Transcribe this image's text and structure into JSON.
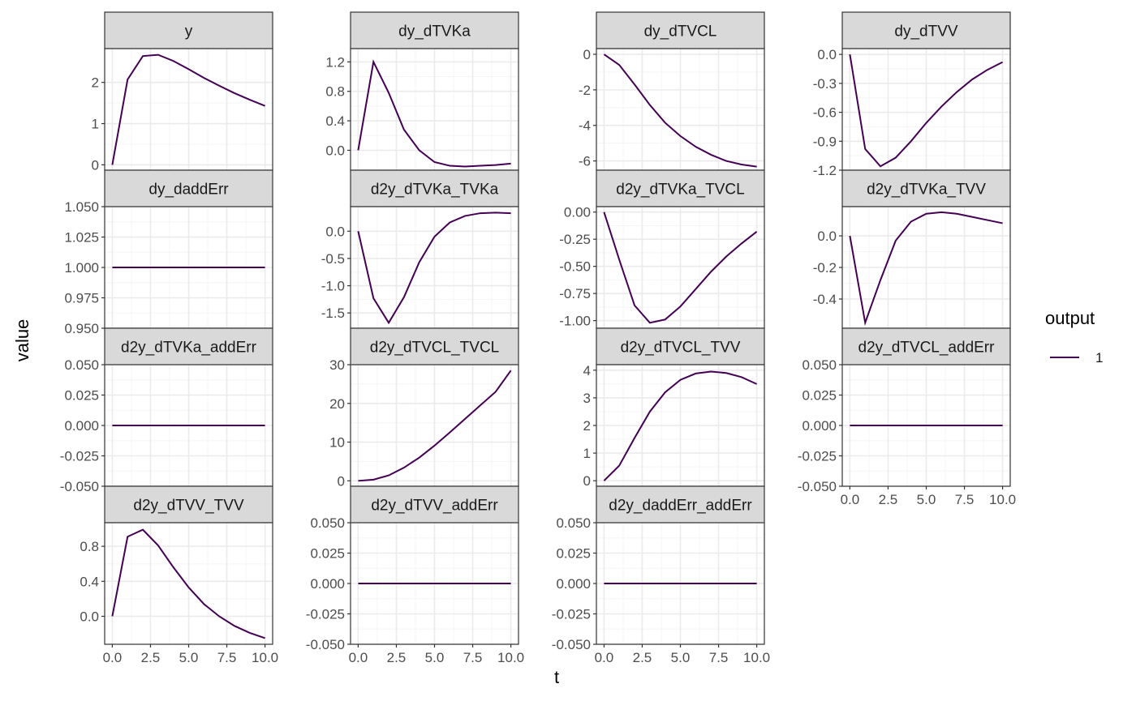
{
  "chart_data": {
    "type": "line",
    "xlabel": "t",
    "ylabel": "value",
    "legend": {
      "title": "output",
      "placement": "right",
      "items": [
        {
          "label": "1",
          "color": "#440154"
        }
      ]
    },
    "colors": {
      "line": "#440154",
      "strip_fill": "#d9d9d9",
      "panel_border": "#333333",
      "grid_major": "#ebebeb",
      "grid_minor": "#f5f5f5"
    },
    "x": [
      0,
      1,
      2,
      3,
      4,
      5,
      6,
      7,
      8,
      9,
      10
    ],
    "x_ticks": [
      0,
      2.5,
      5,
      7.5,
      10
    ],
    "x_tick_labels": [
      "0.0",
      "2.5",
      "5.0",
      "7.5",
      "10.0"
    ],
    "xlim": [
      -0.5,
      10.5
    ],
    "panels": [
      {
        "title": "y",
        "ylim": [
          -0.13,
          2.82
        ],
        "y_ticks": [
          0,
          1,
          2
        ],
        "y_tick_labels": [
          "0",
          "1",
          "2"
        ],
        "values": [
          0,
          2.07,
          2.64,
          2.67,
          2.52,
          2.32,
          2.11,
          1.92,
          1.74,
          1.58,
          1.43
        ]
      },
      {
        "title": "dy_dTVKa",
        "ylim": [
          -0.27,
          1.38
        ],
        "y_ticks": [
          0,
          0.4,
          0.8,
          1.2
        ],
        "y_tick_labels": [
          "0.0",
          "0.4",
          "0.8",
          "1.2"
        ],
        "values": [
          0,
          1.2,
          0.78,
          0.28,
          0.0,
          -0.16,
          -0.21,
          -0.22,
          -0.21,
          -0.2,
          -0.18
        ]
      },
      {
        "title": "dy_dTVCL",
        "ylim": [
          -6.52,
          0.32
        ],
        "y_ticks": [
          -6,
          -4,
          -2,
          0
        ],
        "y_tick_labels": [
          "-6",
          "-4",
          "-2",
          "0"
        ],
        "values": [
          0,
          -0.6,
          -1.7,
          -2.85,
          -3.85,
          -4.6,
          -5.2,
          -5.65,
          -6.0,
          -6.2,
          -6.32
        ]
      },
      {
        "title": "dy_dTVV",
        "ylim": [
          -1.2,
          0.06
        ],
        "y_ticks": [
          -1.2,
          -0.9,
          -0.6,
          -0.3,
          0
        ],
        "y_tick_labels": [
          "-1.2",
          "-0.9",
          "-0.6",
          "-0.3",
          "0.0"
        ],
        "values": [
          0,
          -0.98,
          -1.16,
          -1.07,
          -0.9,
          -0.71,
          -0.54,
          -0.39,
          -0.26,
          -0.16,
          -0.08
        ]
      },
      {
        "title": "dy_daddErr",
        "ylim": [
          0.95,
          1.05
        ],
        "y_ticks": [
          0.95,
          0.975,
          1.0,
          1.025,
          1.05
        ],
        "y_tick_labels": [
          "0.950",
          "0.975",
          "1.000",
          "1.025",
          "1.050"
        ],
        "values": [
          1,
          1,
          1,
          1,
          1,
          1,
          1,
          1,
          1,
          1,
          1
        ]
      },
      {
        "title": "d2y_dTVKa_TVKa",
        "ylim": [
          -1.78,
          0.45
        ],
        "y_ticks": [
          -1.5,
          -1.0,
          -0.5,
          0
        ],
        "y_tick_labels": [
          "-1.5",
          "-1.0",
          "-0.5",
          "0.0"
        ],
        "values": [
          0,
          -1.23,
          -1.68,
          -1.21,
          -0.57,
          -0.1,
          0.16,
          0.28,
          0.33,
          0.34,
          0.33
        ]
      },
      {
        "title": "d2y_dTVKa_TVCL",
        "ylim": [
          -1.07,
          0.05
        ],
        "y_ticks": [
          -1.0,
          -0.75,
          -0.5,
          -0.25,
          0
        ],
        "y_tick_labels": [
          "-1.00",
          "-0.75",
          "-0.50",
          "-0.25",
          "0.00"
        ],
        "values": [
          0,
          -0.44,
          -0.86,
          -1.02,
          -0.99,
          -0.87,
          -0.71,
          -0.55,
          -0.41,
          -0.29,
          -0.18
        ]
      },
      {
        "title": "d2y_dTVKa_TVV",
        "ylim": [
          -0.585,
          0.185
        ],
        "y_ticks": [
          -0.4,
          -0.2,
          0
        ],
        "y_tick_labels": [
          "-0.4",
          "-0.2",
          "0.0"
        ],
        "values": [
          0,
          -0.55,
          -0.28,
          -0.03,
          0.09,
          0.14,
          0.15,
          0.14,
          0.12,
          0.1,
          0.08
        ]
      },
      {
        "title": "d2y_dTVKa_addErr",
        "ylim": [
          -0.05,
          0.05
        ],
        "y_ticks": [
          -0.05,
          -0.025,
          0,
          0.025,
          0.05
        ],
        "y_tick_labels": [
          "-0.050",
          "-0.025",
          "0.000",
          "0.025",
          "0.050"
        ],
        "values": [
          0,
          0,
          0,
          0,
          0,
          0,
          0,
          0,
          0,
          0,
          0
        ]
      },
      {
        "title": "d2y_dTVCL_TVCL",
        "ylim": [
          -1.4,
          30.0
        ],
        "y_ticks": [
          0,
          10,
          20,
          30
        ],
        "y_tick_labels": [
          "0",
          "10",
          "20",
          "30"
        ],
        "values": [
          0,
          0.3,
          1.4,
          3.4,
          6.0,
          9.1,
          12.5,
          16.0,
          19.5,
          23.0,
          28.5
        ]
      },
      {
        "title": "d2y_dTVCL_TVV",
        "ylim": [
          -0.2,
          4.2
        ],
        "y_ticks": [
          0,
          1,
          2,
          3,
          4
        ],
        "y_tick_labels": [
          "0",
          "1",
          "2",
          "3",
          "4"
        ],
        "values": [
          0,
          0.55,
          1.55,
          2.5,
          3.2,
          3.65,
          3.88,
          3.95,
          3.9,
          3.75,
          3.5
        ]
      },
      {
        "title": "d2y_dTVCL_addErr",
        "ylim": [
          -0.05,
          0.05
        ],
        "y_ticks": [
          -0.05,
          -0.025,
          0,
          0.025,
          0.05
        ],
        "y_tick_labels": [
          "-0.050",
          "-0.025",
          "0.000",
          "0.025",
          "0.050"
        ],
        "values": [
          0,
          0,
          0,
          0,
          0,
          0,
          0,
          0,
          0,
          0,
          0
        ]
      },
      {
        "title": "d2y_dTVV_TVV",
        "ylim": [
          -0.32,
          1.07
        ],
        "y_ticks": [
          0,
          0.4,
          0.8
        ],
        "y_tick_labels": [
          "0.0",
          "0.4",
          "0.8"
        ],
        "values": [
          0,
          0.91,
          0.99,
          0.81,
          0.56,
          0.33,
          0.14,
          0.0,
          -0.11,
          -0.19,
          -0.25
        ]
      },
      {
        "title": "d2y_dTVV_addErr",
        "ylim": [
          -0.05,
          0.05
        ],
        "y_ticks": [
          -0.05,
          -0.025,
          0,
          0.025,
          0.05
        ],
        "y_tick_labels": [
          "-0.050",
          "-0.025",
          "0.000",
          "0.025",
          "0.050"
        ],
        "values": [
          0,
          0,
          0,
          0,
          0,
          0,
          0,
          0,
          0,
          0,
          0
        ]
      },
      {
        "title": "d2y_daddErr_addErr",
        "ylim": [
          -0.05,
          0.05
        ],
        "y_ticks": [
          -0.05,
          -0.025,
          0,
          0.025,
          0.05
        ],
        "y_tick_labels": [
          "-0.050",
          "-0.025",
          "0.000",
          "0.025",
          "0.050"
        ],
        "values": [
          0,
          0,
          0,
          0,
          0,
          0,
          0,
          0,
          0,
          0,
          0
        ]
      }
    ]
  }
}
